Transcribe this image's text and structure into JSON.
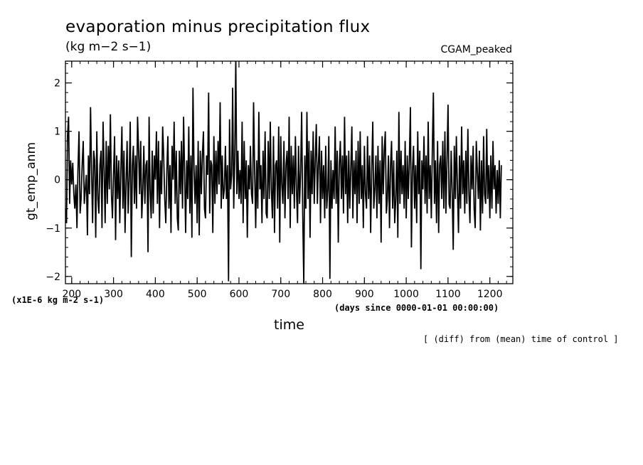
{
  "chart_data": {
    "type": "line",
    "title": "evaporation minus precipitation flux",
    "units_label": "(kg m−2 s−1)",
    "experiment": "CGAM_peaked",
    "ylabel": "gt_emp_anm",
    "xlabel": "time",
    "x_units": "(days since 0000-01-01 00:00:00)",
    "y_scale_note": "(x1E-6 kg m-2 s-1)",
    "footnote": "[ (diff) from (mean) time of control ]",
    "xlim": [
      185,
      1255
    ],
    "ylim": [
      -2.15,
      2.45
    ],
    "x_ticks": [
      "200",
      "300",
      "400",
      "500",
      "600",
      "700",
      "800",
      "900",
      "1000",
      "1100",
      "1200"
    ],
    "y_ticks": [
      "2",
      "1",
      "0",
      "−1",
      "−2"
    ],
    "x_tick_values": [
      200,
      300,
      400,
      500,
      600,
      700,
      800,
      900,
      1000,
      1100,
      1200
    ],
    "y_tick_values": [
      2,
      1,
      0,
      -1,
      -2
    ],
    "line_color": "#000000",
    "series": [
      {
        "x_start": 185,
        "x_step": 2.5,
        "values": [
          -0.6,
          -0.9,
          0.9,
          1.3,
          -0.5,
          0.4,
          -0.1,
          0.35,
          -0.3,
          -0.6,
          -0.1,
          -1.0,
          0.2,
          1.0,
          -0.7,
          -0.4,
          0.3,
          0.8,
          -0.5,
          -0.2,
          0.1,
          -1.15,
          0.5,
          -0.3,
          1.5,
          0.2,
          -0.9,
          0.6,
          0.4,
          -1.2,
          1.0,
          -0.4,
          -0.7,
          0.3,
          0.6,
          -1.0,
          1.2,
          0.2,
          -0.9,
          0.8,
          -0.5,
          0.7,
          -0.2,
          1.35,
          -0.3,
          -0.8,
          0.1,
          0.9,
          -1.25,
          0.5,
          -0.4,
          0.4,
          -0.9,
          0.2,
          1.1,
          -0.6,
          0.6,
          -1.1,
          -0.1,
          0.8,
          -0.7,
          0.0,
          1.2,
          -1.6,
          0.3,
          0.7,
          -0.5,
          0.5,
          -0.6,
          1.3,
          0.6,
          -0.3,
          0.8,
          -0.8,
          -0.2,
          0.7,
          -0.5,
          0.3,
          0.4,
          -1.5,
          1.3,
          -0.2,
          -0.8,
          0.6,
          -0.7,
          0.5,
          0.0,
          1.0,
          -0.5,
          0.8,
          -1.0,
          0.4,
          -0.3,
          1.1,
          0.5,
          -0.4,
          -0.9,
          0.2,
          0.9,
          -0.6,
          0.3,
          -1.1,
          0.7,
          0.0,
          1.2,
          -0.5,
          0.6,
          -0.8,
          -1.05,
          0.6,
          -0.3,
          0.8,
          -0.6,
          1.3,
          0.2,
          -1.1,
          0.4,
          -0.4,
          1.1,
          -0.7,
          0.5,
          -1.2,
          1.9,
          0.2,
          -0.5,
          0.3,
          -0.9,
          0.8,
          -1.15,
          0.6,
          -0.3,
          0.5,
          1.0,
          -0.6,
          -0.8,
          0.5,
          0.1,
          1.8,
          -0.7,
          0.4,
          0.3,
          -1.1,
          0.9,
          -0.5,
          0.6,
          -0.3,
          0.8,
          -0.1,
          1.6,
          -0.6,
          0.5,
          -0.4,
          -0.2,
          0.7,
          -0.4,
          0.3,
          -2.1,
          1.25,
          -0.2,
          0.1,
          1.9,
          -0.6,
          0.5,
          2.5,
          -0.3,
          0.6,
          -0.4,
          0.2,
          -0.5,
          1.2,
          -0.9,
          0.8,
          -0.4,
          0.4,
          -1.2,
          0.3,
          -0.2,
          0.7,
          -0.3,
          -0.5,
          1.6,
          0.2,
          -1.0,
          0.4,
          -0.6,
          1.4,
          -0.2,
          0.3,
          -0.9,
          0.6,
          -0.4,
          1.0,
          -0.7,
          -0.8,
          0.8,
          -0.4,
          1.2,
          -0.2,
          -0.8,
          0.9,
          -1.1,
          0.3,
          0.4,
          -0.6,
          1.1,
          -1.3,
          0.9,
          -0.1,
          -0.5,
          0.8,
          -0.8,
          0.3,
          0.6,
          -0.4,
          1.3,
          -1.0,
          0.7,
          -0.3,
          0.5,
          -0.6,
          0.9,
          -0.2,
          -0.9,
          0.7,
          -0.5,
          0.2,
          1.4,
          -0.7,
          -2.15,
          0.5,
          -0.6,
          1.4,
          -0.4,
          0.8,
          -1.2,
          0.6,
          -0.3,
          1.0,
          -0.5,
          0.4,
          1.15,
          -0.5,
          0.3,
          0.9,
          -0.9,
          0.6,
          -0.4,
          0.3,
          -0.8,
          0.7,
          -0.6,
          -0.2,
          0.9,
          -2.05,
          0.4,
          -0.6,
          0.2,
          -0.4,
          1.1,
          -0.5,
          0.6,
          -1.3,
          0.3,
          0.8,
          -0.4,
          0.5,
          -0.7,
          1.3,
          -0.3,
          0.5,
          -0.9,
          0.6,
          -0.6,
          0.2,
          1.1,
          -0.8,
          0.4,
          -0.3,
          0.6,
          -0.9,
          0.8,
          -0.5,
          1.0,
          -0.4,
          0.3,
          -1.0,
          0.7,
          -0.3,
          -0.6,
          0.9,
          -0.4,
          0.5,
          -1.1,
          0.2,
          1.2,
          -0.6,
          -0.2,
          0.5,
          -0.8,
          0.7,
          -0.5,
          0.4,
          -1.3,
          0.9,
          -0.3,
          0.6,
          1.0,
          -0.7,
          -0.4,
          0.5,
          -1.0,
          0.3,
          0.8,
          -0.6,
          0.4,
          -0.9,
          -0.4,
          0.6,
          -1.2,
          1.4,
          -0.5,
          0.6,
          -0.3,
          0.3,
          -0.6,
          0.8,
          -0.8,
          0.5,
          -0.4,
          0.4,
          1.5,
          -1.4,
          0.2,
          0.7,
          -0.6,
          0.3,
          -0.9,
          1.0,
          -0.3,
          0.6,
          -1.85,
          0.4,
          -0.2,
          0.9,
          -0.5,
          0.5,
          -0.7,
          1.2,
          -0.4,
          0.3,
          -0.8,
          0.6,
          1.8,
          -0.5,
          0.4,
          -0.9,
          0.8,
          -1.1,
          0.3,
          0.5,
          -0.4,
          0.8,
          -0.6,
          1.0,
          -0.7,
          0.4,
          1.55,
          -0.5,
          -0.6,
          0.6,
          -0.3,
          -1.45,
          0.7,
          -0.4,
          0.9,
          -0.2,
          -1.1,
          0.5,
          -0.6,
          1.1,
          -0.3,
          0.4,
          -0.7,
          0.6,
          -0.5,
          1.05,
          -0.3,
          -0.9,
          0.5,
          -0.2,
          0.7,
          -0.6,
          -1.0,
          0.8,
          0.2,
          -0.4,
          0.6,
          -1.05,
          0.4,
          -0.7,
          0.9,
          -0.3,
          -0.5,
          1.05,
          -0.4,
          0.3,
          -0.8,
          0.5,
          -0.6,
          0.8,
          -0.2,
          0.3,
          -0.7,
          0.2,
          -0.5,
          0.4,
          -0.8,
          0.3
        ]
      }
    ]
  }
}
